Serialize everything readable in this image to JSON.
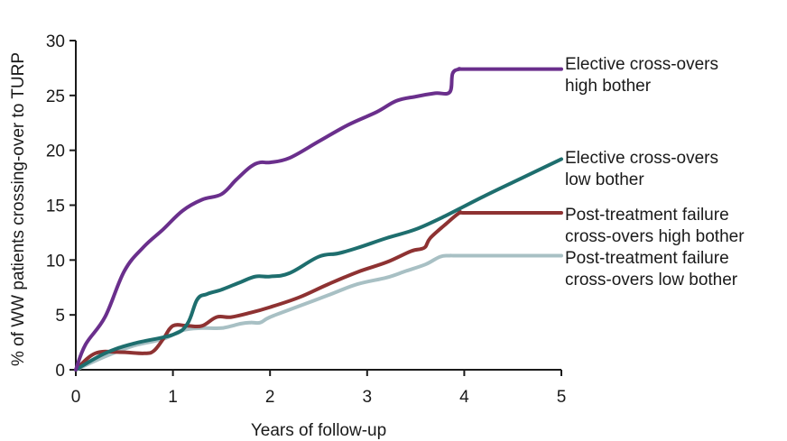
{
  "chart_data": {
    "type": "line",
    "xlabel": "Years of follow-up",
    "ylabel": "% of WW patients crossing-over to TURP",
    "xlim": [
      0,
      5
    ],
    "ylim": [
      0,
      30
    ],
    "xticks": [
      "0",
      "1",
      "2",
      "3",
      "4",
      "5"
    ],
    "yticks": [
      "0",
      "5",
      "10",
      "15",
      "20",
      "25",
      "30"
    ],
    "grid": false,
    "legend": "inline labels at right end of lines",
    "series": [
      {
        "name_lines": [
          "Elective cross-overs",
          "high bother"
        ],
        "color": "#6a2f8c",
        "x": [
          0,
          0.1,
          0.3,
          0.5,
          0.7,
          0.9,
          1.1,
          1.3,
          1.5,
          1.65,
          1.8,
          1.9,
          2.0,
          2.2,
          2.5,
          2.8,
          3.1,
          3.3,
          3.5,
          3.7,
          3.85,
          3.88,
          3.95,
          4.0,
          4.5,
          5.0
        ],
        "y": [
          0,
          2.3,
          4.8,
          9.0,
          11.2,
          12.8,
          14.5,
          15.5,
          16.0,
          17.3,
          18.5,
          18.9,
          18.9,
          19.3,
          20.8,
          22.3,
          23.5,
          24.5,
          24.9,
          25.2,
          25.3,
          27.0,
          27.4,
          27.4,
          27.4,
          27.4
        ]
      },
      {
        "name_lines": [
          "Elective cross-overs",
          "low bother"
        ],
        "color": "#1e6e6e",
        "x": [
          0,
          0.3,
          0.6,
          1.0,
          1.15,
          1.25,
          1.35,
          1.5,
          1.7,
          1.85,
          2.0,
          2.2,
          2.5,
          2.7,
          2.9,
          3.2,
          3.5,
          3.8,
          4.2,
          4.6,
          5.0
        ],
        "y": [
          0,
          1.5,
          2.4,
          3.2,
          4.2,
          6.4,
          6.9,
          7.3,
          8.0,
          8.5,
          8.5,
          8.8,
          10.3,
          10.6,
          11.1,
          12.0,
          12.8,
          14.0,
          15.8,
          17.5,
          19.2
        ]
      },
      {
        "name_lines": [
          "Post-treatment failure",
          "cross-overs high bother"
        ],
        "color": "#8e3232",
        "x": [
          0,
          0.2,
          0.45,
          0.7,
          0.8,
          0.9,
          1.0,
          1.15,
          1.3,
          1.45,
          1.6,
          1.8,
          2.0,
          2.3,
          2.6,
          2.9,
          3.2,
          3.45,
          3.55,
          3.6,
          3.65,
          3.8,
          3.95,
          4.0,
          4.5,
          5.0
        ],
        "y": [
          0,
          1.5,
          1.6,
          1.5,
          1.7,
          2.8,
          4.0,
          4.0,
          4.0,
          4.8,
          4.8,
          5.2,
          5.7,
          6.6,
          7.8,
          8.9,
          9.8,
          10.8,
          11.0,
          11.2,
          12.0,
          13.2,
          14.3,
          14.3,
          14.3,
          14.3
        ]
      },
      {
        "name_lines": [
          "Post-treatment failure",
          "cross-overs low bother"
        ],
        "color": "#a8c0c4",
        "x": [
          0,
          0.3,
          0.6,
          0.9,
          1.1,
          1.3,
          1.5,
          1.7,
          1.8,
          1.9,
          2.0,
          2.3,
          2.6,
          2.9,
          3.2,
          3.4,
          3.6,
          3.75,
          3.85,
          4.0,
          5.0
        ],
        "y": [
          0,
          1.2,
          2.2,
          2.8,
          3.6,
          3.8,
          3.8,
          4.2,
          4.3,
          4.3,
          4.8,
          5.8,
          6.8,
          7.8,
          8.4,
          9.0,
          9.6,
          10.3,
          10.4,
          10.4,
          10.4
        ]
      }
    ]
  }
}
